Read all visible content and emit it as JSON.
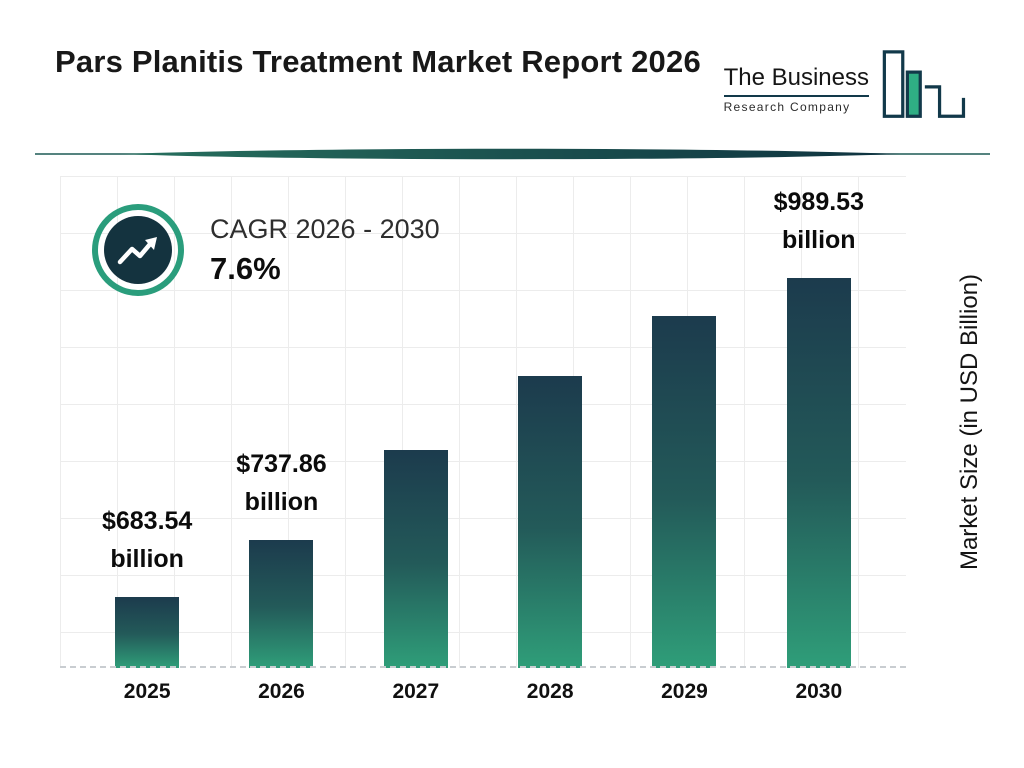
{
  "header": {
    "title": "Pars Planitis Treatment Market Report 2026",
    "logo": {
      "line1": "The Business",
      "line2": "Research Company"
    }
  },
  "cagr": {
    "label": "CAGR 2026 - 2030",
    "value": "7.6%"
  },
  "chart_data": {
    "type": "bar",
    "title": "Pars Planitis Treatment Market Report 2026",
    "categories": [
      "2025",
      "2026",
      "2027",
      "2028",
      "2029",
      "2030"
    ],
    "values": [
      683.54,
      737.86,
      825,
      896,
      953,
      989.53
    ],
    "bar_labels": [
      {
        "value": "$683.54",
        "unit": "billion"
      },
      {
        "value": "$737.86",
        "unit": "billion"
      },
      null,
      null,
      null,
      {
        "value": "$989.53",
        "unit": "billion"
      }
    ],
    "xlabel": "",
    "ylabel": "Market Size (in USD Billion)",
    "ylim": [
      615,
      990
    ],
    "grid": true,
    "legend": false,
    "colors": {
      "bar_top": "#1c3b4d",
      "bar_bottom": "#2f9e79",
      "accent_teal": "#2a9d7c",
      "navy": "#14333f"
    }
  }
}
